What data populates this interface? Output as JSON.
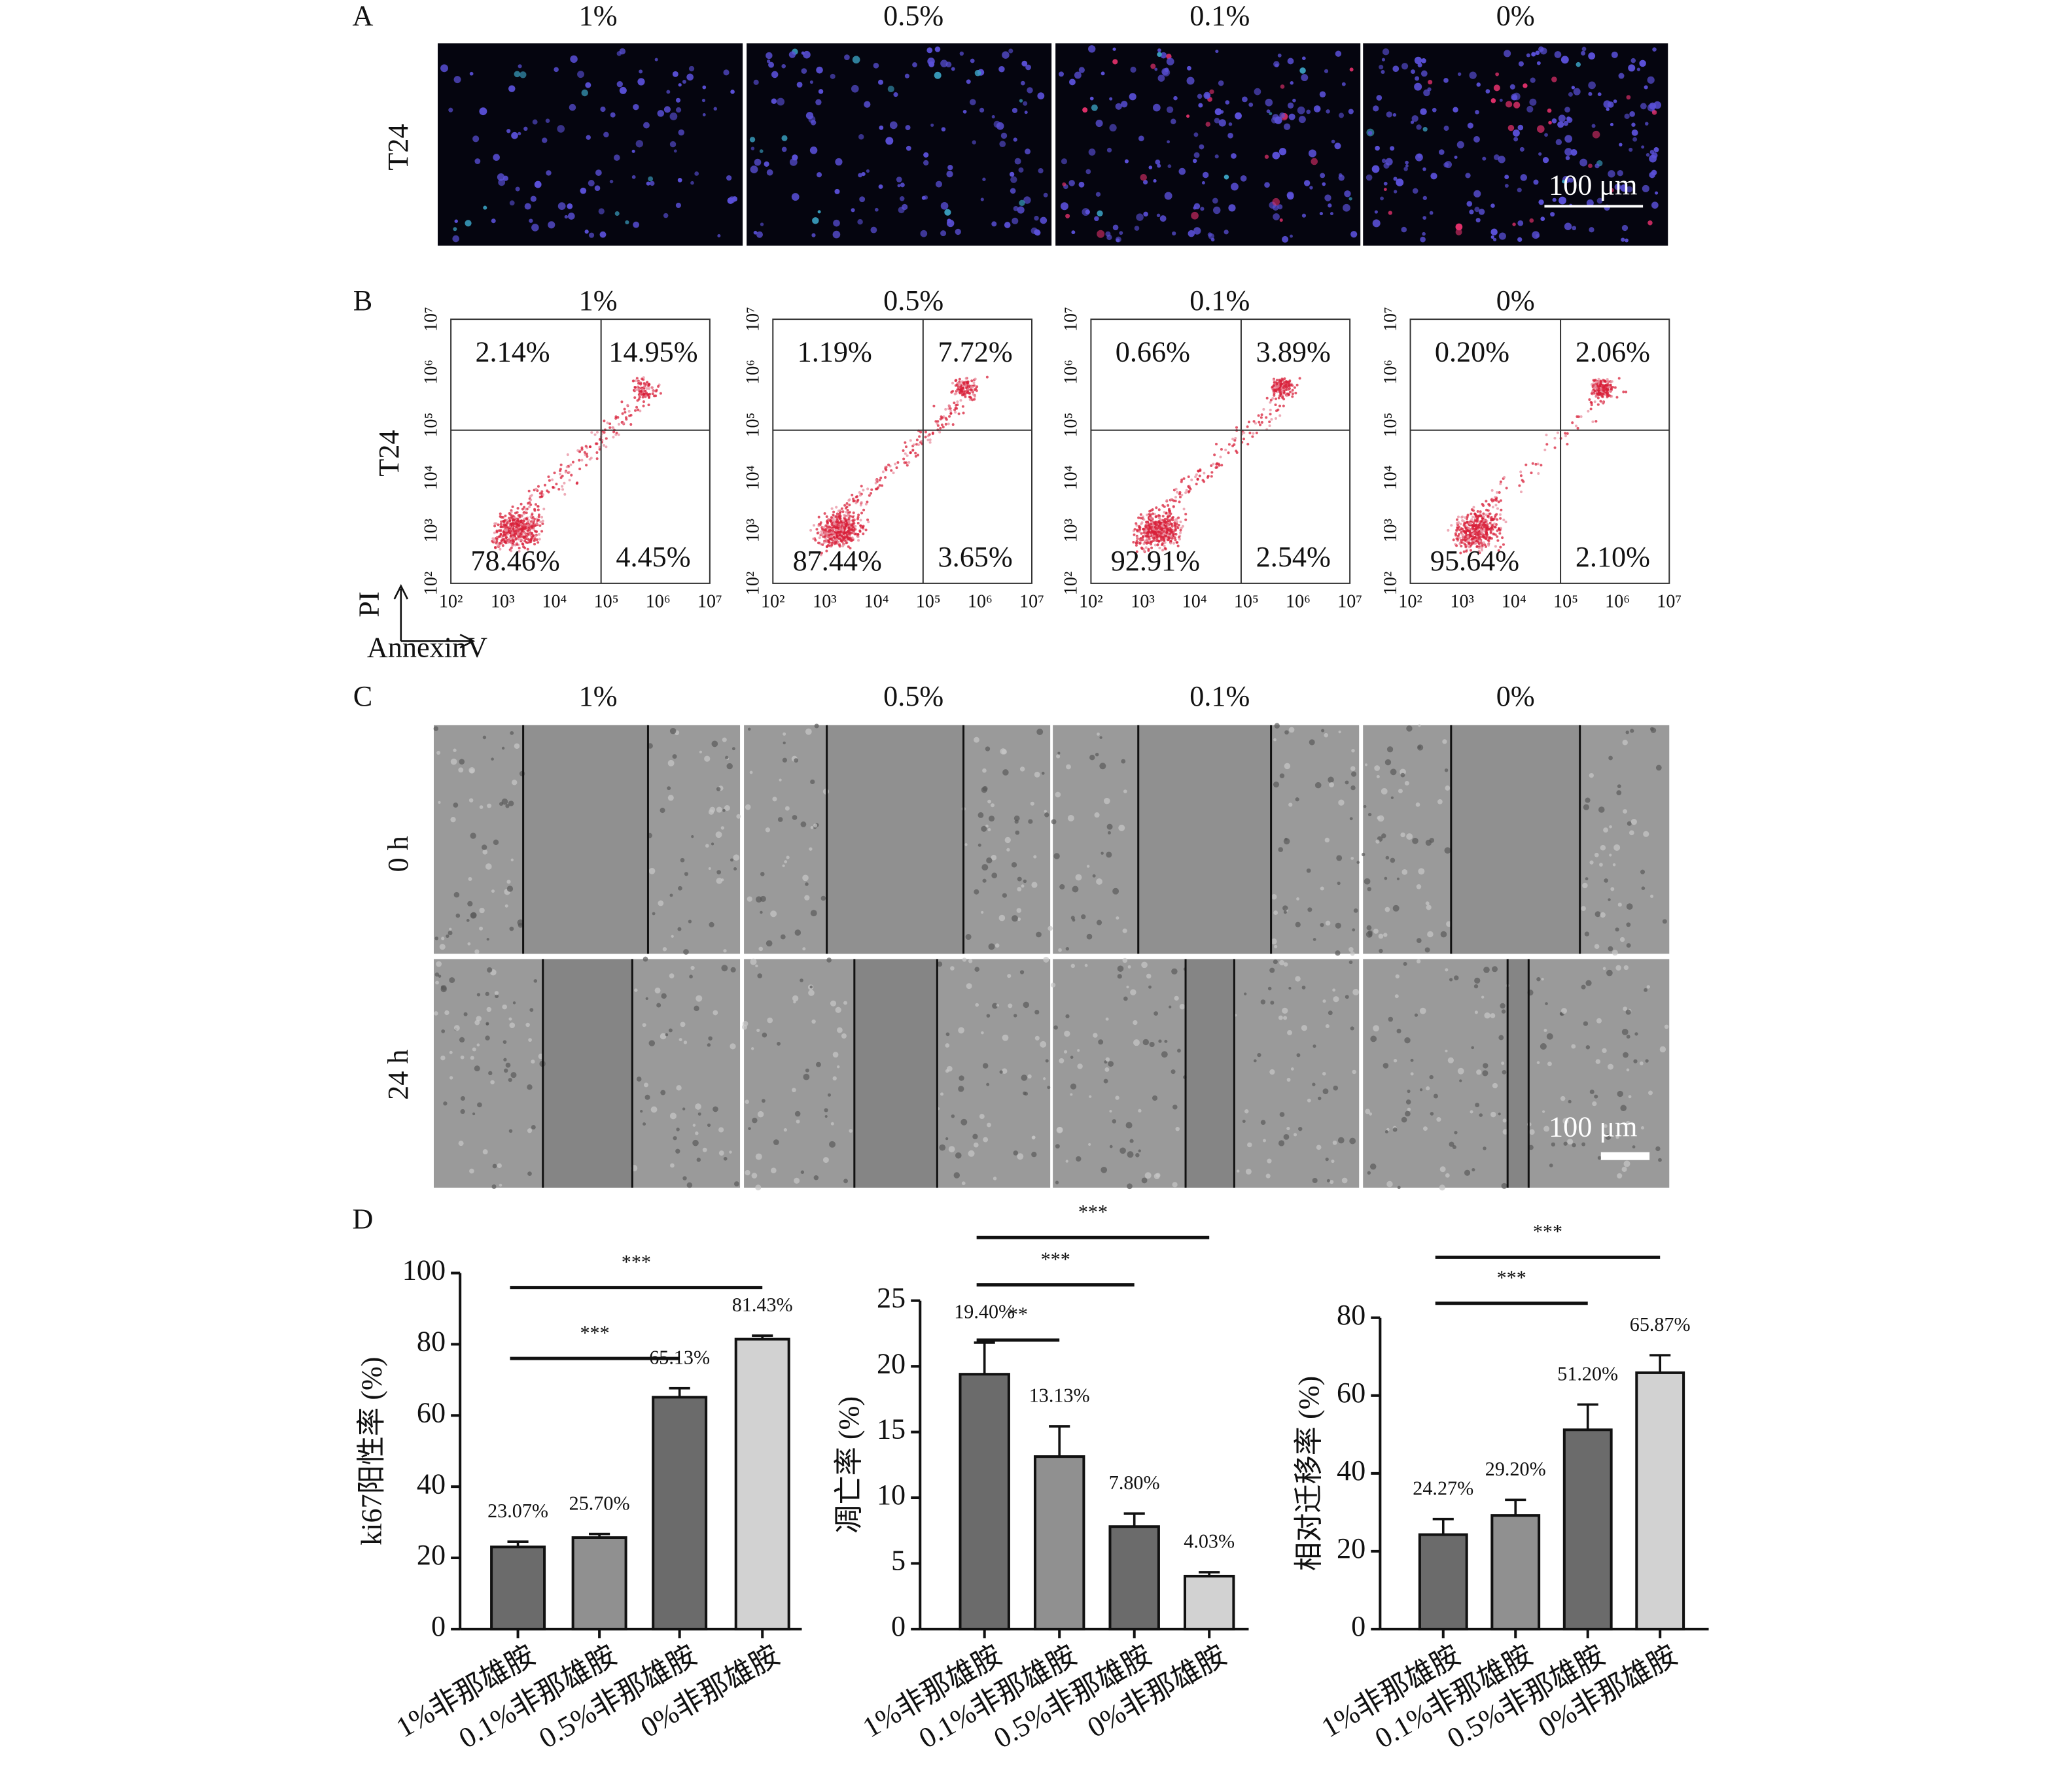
{
  "panel_a": {
    "label": "A",
    "columns": [
      "1%",
      "0.5%",
      "0.1%",
      "0%"
    ],
    "row_label": "T24",
    "scale_bar": "100 μm"
  },
  "panel_b": {
    "label": "B",
    "columns": [
      "1%",
      "0.5%",
      "0.1%",
      "0%"
    ],
    "row_label": "T24",
    "y_axis": "PI",
    "x_axis": "AnnexinV",
    "ticks": [
      "10²",
      "10³",
      "10⁴",
      "10⁵",
      "10⁶",
      "10⁷"
    ],
    "quadrants": [
      [
        "2.14%",
        "14.95%",
        "78.46%",
        "4.45%"
      ],
      [
        "1.19%",
        "7.72%",
        "87.44%",
        "3.65%"
      ],
      [
        "0.66%",
        "3.89%",
        "92.91%",
        "2.54%"
      ],
      [
        "0.20%",
        "2.06%",
        "95.64%",
        "2.10%"
      ]
    ]
  },
  "panel_c": {
    "label": "C",
    "columns": [
      "1%",
      "0.5%",
      "0.1%",
      "0%"
    ],
    "row_labels": [
      "0 h",
      "24 h"
    ],
    "scale_bar": "100 μm"
  },
  "panel_d": {
    "label": "D"
  },
  "chart_data": [
    {
      "type": "bar",
      "ylabel": "ki67阳性率 (%)",
      "categories": [
        "1%非那雄胺",
        "0.1%非那雄胺",
        "0.5%非那雄胺",
        "0%非那雄胺"
      ],
      "values": [
        23.07,
        25.7,
        65.13,
        81.43
      ],
      "value_labels": [
        "23.07%",
        "25.70%",
        "65.13%",
        "81.43%"
      ],
      "errors": [
        1.5,
        1.0,
        2.5,
        1.0
      ],
      "colors": [
        "#6b6b6b",
        "#909090",
        "#6b6b6b",
        "#d2d2d2"
      ],
      "ylim": [
        0,
        100
      ],
      "yticks": [
        0,
        20,
        40,
        60,
        80,
        100
      ],
      "annotations": [
        {
          "text": "***",
          "from": 0,
          "to": 3
        },
        {
          "text": "***",
          "from": 0,
          "to": 2
        }
      ]
    },
    {
      "type": "bar",
      "ylabel": "凋亡率 (%)",
      "categories": [
        "1%非那雄胺",
        "0.1%非那雄胺",
        "0.5%非那雄胺",
        "0%非那雄胺"
      ],
      "values": [
        19.4,
        13.13,
        7.8,
        4.03
      ],
      "value_labels": [
        "19.40%",
        "13.13%",
        "7.80%",
        "4.03%"
      ],
      "errors": [
        2.4,
        2.3,
        1.0,
        0.3
      ],
      "colors": [
        "#6b6b6b",
        "#909090",
        "#6b6b6b",
        "#d2d2d2"
      ],
      "ylim": [
        0,
        25
      ],
      "yticks": [
        0,
        5,
        10,
        15,
        20,
        25
      ],
      "annotations": [
        {
          "text": "***",
          "from": 0,
          "to": 3
        },
        {
          "text": "***",
          "from": 0,
          "to": 2
        },
        {
          "text": "**",
          "from": 0,
          "to": 1
        }
      ]
    },
    {
      "type": "bar",
      "ylabel": "相对迁移率 (%)",
      "categories": [
        "1%非那雄胺",
        "0.1%非那雄胺",
        "0.5%非那雄胺",
        "0%非那雄胺"
      ],
      "values": [
        24.27,
        29.2,
        51.2,
        65.87
      ],
      "value_labels": [
        "24.27%",
        "29.20%",
        "51.20%",
        "65.87%"
      ],
      "errors": [
        4.0,
        4.0,
        6.5,
        4.5
      ],
      "colors": [
        "#6b6b6b",
        "#909090",
        "#6b6b6b",
        "#d2d2d2"
      ],
      "ylim": [
        0,
        80
      ],
      "yticks": [
        0,
        20,
        40,
        60,
        80
      ],
      "annotations": [
        {
          "text": "***",
          "from": 0,
          "to": 3
        },
        {
          "text": "***",
          "from": 0,
          "to": 2
        }
      ]
    }
  ]
}
